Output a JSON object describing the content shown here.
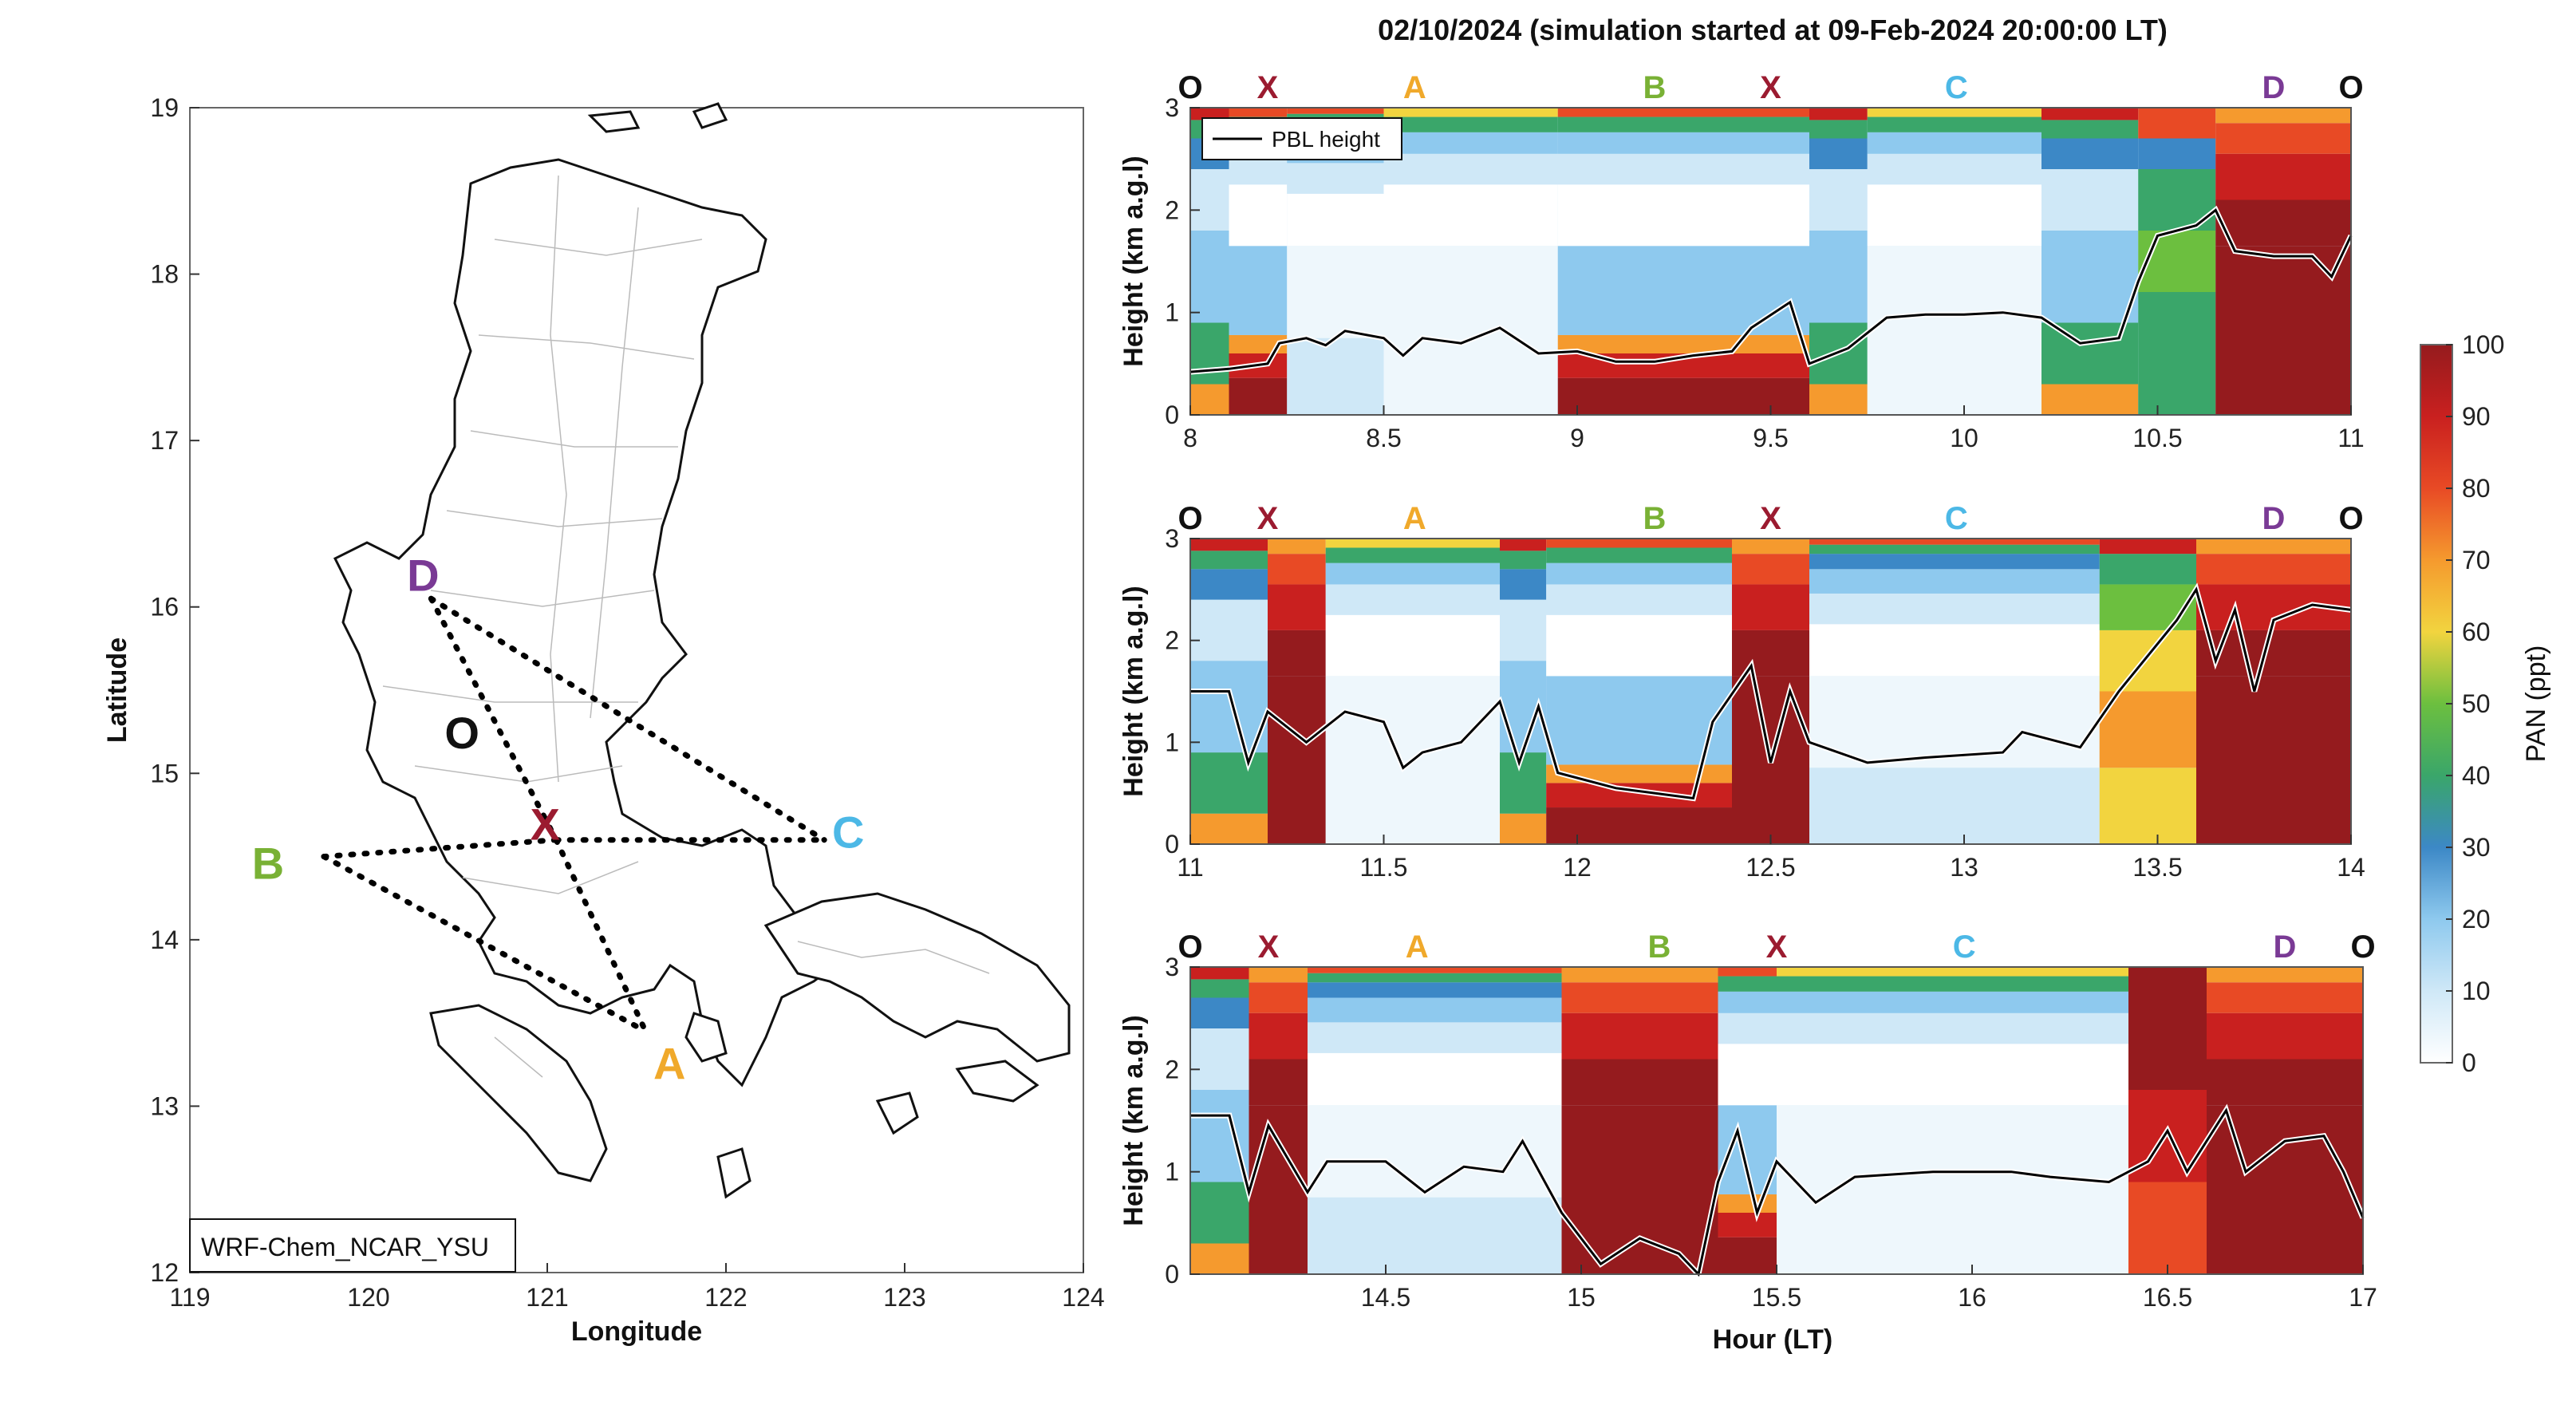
{
  "colors": {
    "O": "#111111",
    "X": "#9b1b30",
    "A": "#f0a92b",
    "B": "#79b135",
    "C": "#4cb8e6",
    "D": "#7a3a95"
  },
  "map": {
    "xlabel": "Longitude",
    "ylabel": "Latitude",
    "xticks": [
      "119",
      "120",
      "121",
      "122",
      "123",
      "124"
    ],
    "yticks": [
      "12",
      "13",
      "14",
      "15",
      "16",
      "17",
      "18",
      "19"
    ],
    "model_label": "WRF-Chem_NCAR_YSU",
    "points": [
      {
        "key": "D",
        "label": "D",
        "lon": 120.35,
        "lat": 16.05
      },
      {
        "key": "O",
        "label": "O",
        "lon": 120.55,
        "lat": 15.15
      },
      {
        "key": "X",
        "label": "X",
        "lon": 121.05,
        "lat": 14.6
      },
      {
        "key": "B",
        "label": "B",
        "lon": 119.75,
        "lat": 14.5
      },
      {
        "key": "C",
        "label": "C",
        "lon": 122.55,
        "lat": 14.6
      },
      {
        "key": "A",
        "label": "A",
        "lon": 121.55,
        "lat": 13.45
      }
    ]
  },
  "title": "02/10/2024 (simulation started at 09-Feb-2024 20:00:00 LT)",
  "legend_label": "PBL height",
  "xlabel": "Hour (LT)",
  "ylabel": "Height (km a.g.l)",
  "colorbar": {
    "label": "PAN (ppt)",
    "ticks": [
      "0",
      "10",
      "20",
      "30",
      "40",
      "50",
      "60",
      "70",
      "80",
      "90",
      "100"
    ]
  },
  "chart_data": [
    {
      "type": "heatmap",
      "xlim": [
        8,
        11
      ],
      "ylim": [
        0,
        3
      ],
      "xticks": [
        "8",
        "8.5",
        "9",
        "9.5",
        "10",
        "10.5",
        "11"
      ],
      "yticks": [
        "0",
        "1",
        "2",
        "3"
      ],
      "waypoints": [
        {
          "label": "O",
          "key": "O",
          "x": 8.0
        },
        {
          "label": "X",
          "key": "X",
          "x": 8.2
        },
        {
          "label": "A",
          "key": "A",
          "x": 8.58
        },
        {
          "label": "B",
          "key": "B",
          "x": 9.2
        },
        {
          "label": "X",
          "key": "X",
          "x": 9.5
        },
        {
          "label": "C",
          "key": "C",
          "x": 9.98
        },
        {
          "label": "D",
          "key": "D",
          "x": 10.8
        },
        {
          "label": "O",
          "key": "O",
          "x": 11.0
        }
      ],
      "pbl": [
        [
          8.0,
          0.42
        ],
        [
          8.1,
          0.45
        ],
        [
          8.2,
          0.5
        ],
        [
          8.23,
          0.7
        ],
        [
          8.3,
          0.75
        ],
        [
          8.35,
          0.68
        ],
        [
          8.4,
          0.82
        ],
        [
          8.5,
          0.75
        ],
        [
          8.55,
          0.58
        ],
        [
          8.6,
          0.75
        ],
        [
          8.7,
          0.7
        ],
        [
          8.8,
          0.85
        ],
        [
          8.9,
          0.6
        ],
        [
          9.0,
          0.62
        ],
        [
          9.1,
          0.52
        ],
        [
          9.2,
          0.52
        ],
        [
          9.3,
          0.58
        ],
        [
          9.4,
          0.62
        ],
        [
          9.45,
          0.85
        ],
        [
          9.55,
          1.1
        ],
        [
          9.6,
          0.5
        ],
        [
          9.7,
          0.65
        ],
        [
          9.8,
          0.95
        ],
        [
          9.9,
          0.98
        ],
        [
          10.0,
          0.98
        ],
        [
          10.1,
          1.0
        ],
        [
          10.2,
          0.95
        ],
        [
          10.3,
          0.7
        ],
        [
          10.4,
          0.75
        ],
        [
          10.45,
          1.3
        ],
        [
          10.5,
          1.75
        ],
        [
          10.6,
          1.85
        ],
        [
          10.65,
          2.0
        ],
        [
          10.7,
          1.6
        ],
        [
          10.8,
          1.55
        ],
        [
          10.9,
          1.55
        ],
        [
          10.95,
          1.35
        ],
        [
          11.0,
          1.75
        ]
      ],
      "columns": [
        [
          8.0,
          8.1,
          "mid"
        ],
        [
          8.1,
          8.25,
          "lowhi"
        ],
        [
          8.25,
          8.5,
          "clean"
        ],
        [
          8.5,
          8.95,
          "vclean"
        ],
        [
          8.95,
          9.3,
          "lowhi"
        ],
        [
          9.3,
          9.6,
          "lowhi"
        ],
        [
          9.6,
          9.75,
          "mid"
        ],
        [
          9.75,
          10.2,
          "vclean"
        ],
        [
          10.2,
          10.45,
          "mid"
        ],
        [
          10.45,
          10.65,
          "green"
        ],
        [
          10.65,
          11.0,
          "high"
        ]
      ]
    },
    {
      "type": "heatmap",
      "xlim": [
        11,
        14
      ],
      "ylim": [
        0,
        3
      ],
      "xticks": [
        "11",
        "11.5",
        "12",
        "12.5",
        "13",
        "13.5",
        "14"
      ],
      "yticks": [
        "0",
        "1",
        "2",
        "3"
      ],
      "waypoints": [
        {
          "label": "O",
          "key": "O",
          "x": 11.0
        },
        {
          "label": "X",
          "key": "X",
          "x": 11.2
        },
        {
          "label": "A",
          "key": "A",
          "x": 11.58
        },
        {
          "label": "B",
          "key": "B",
          "x": 12.2
        },
        {
          "label": "X",
          "key": "X",
          "x": 12.5
        },
        {
          "label": "C",
          "key": "C",
          "x": 12.98
        },
        {
          "label": "D",
          "key": "D",
          "x": 13.8
        },
        {
          "label": "O",
          "key": "O",
          "x": 14.0
        }
      ],
      "pbl": [
        [
          11.0,
          1.5
        ],
        [
          11.1,
          1.5
        ],
        [
          11.15,
          0.8
        ],
        [
          11.2,
          1.3
        ],
        [
          11.3,
          1.0
        ],
        [
          11.4,
          1.3
        ],
        [
          11.5,
          1.2
        ],
        [
          11.55,
          0.75
        ],
        [
          11.6,
          0.9
        ],
        [
          11.7,
          1.0
        ],
        [
          11.8,
          1.4
        ],
        [
          11.85,
          0.8
        ],
        [
          11.9,
          1.35
        ],
        [
          11.95,
          0.7
        ],
        [
          12.1,
          0.55
        ],
        [
          12.3,
          0.45
        ],
        [
          12.35,
          1.2
        ],
        [
          12.45,
          1.75
        ],
        [
          12.5,
          0.8
        ],
        [
          12.55,
          1.5
        ],
        [
          12.6,
          1.0
        ],
        [
          12.75,
          0.8
        ],
        [
          12.9,
          0.85
        ],
        [
          13.1,
          0.9
        ],
        [
          13.15,
          1.1
        ],
        [
          13.3,
          0.95
        ],
        [
          13.4,
          1.5
        ],
        [
          13.55,
          2.2
        ],
        [
          13.6,
          2.5
        ],
        [
          13.65,
          1.8
        ],
        [
          13.7,
          2.3
        ],
        [
          13.75,
          1.5
        ],
        [
          13.8,
          2.2
        ],
        [
          13.9,
          2.35
        ],
        [
          14.0,
          2.3
        ]
      ],
      "columns": [
        [
          11.0,
          11.2,
          "mid"
        ],
        [
          11.2,
          11.35,
          "high"
        ],
        [
          11.35,
          11.8,
          "vclean"
        ],
        [
          11.8,
          11.92,
          "mid"
        ],
        [
          11.92,
          12.4,
          "lowhi"
        ],
        [
          12.4,
          12.6,
          "high"
        ],
        [
          12.6,
          13.35,
          "clean"
        ],
        [
          13.35,
          13.6,
          "yellow"
        ],
        [
          13.6,
          14.0,
          "high"
        ]
      ]
    },
    {
      "type": "heatmap",
      "xlim": [
        14,
        17
      ],
      "ylim": [
        0,
        3
      ],
      "xticks": [
        "14.5",
        "15",
        "15.5",
        "16",
        "16.5",
        "17"
      ],
      "yticks": [
        "0",
        "1",
        "2",
        "3"
      ],
      "waypoints": [
        {
          "label": "O",
          "key": "O",
          "x": 14.0
        },
        {
          "label": "X",
          "key": "X",
          "x": 14.2
        },
        {
          "label": "A",
          "key": "A",
          "x": 14.58
        },
        {
          "label": "B",
          "key": "B",
          "x": 15.2
        },
        {
          "label": "X",
          "key": "X",
          "x": 15.5
        },
        {
          "label": "C",
          "key": "C",
          "x": 15.98
        },
        {
          "label": "D",
          "key": "D",
          "x": 16.8
        },
        {
          "label": "O",
          "key": "O",
          "x": 17.0
        }
      ],
      "pbl": [
        [
          14.0,
          1.55
        ],
        [
          14.1,
          1.55
        ],
        [
          14.15,
          0.8
        ],
        [
          14.2,
          1.45
        ],
        [
          14.3,
          0.8
        ],
        [
          14.35,
          1.1
        ],
        [
          14.5,
          1.1
        ],
        [
          14.6,
          0.8
        ],
        [
          14.7,
          1.05
        ],
        [
          14.8,
          1.0
        ],
        [
          14.85,
          1.3
        ],
        [
          14.95,
          0.6
        ],
        [
          15.05,
          0.1
        ],
        [
          15.15,
          0.35
        ],
        [
          15.25,
          0.2
        ],
        [
          15.3,
          0.0
        ],
        [
          15.35,
          0.9
        ],
        [
          15.4,
          1.4
        ],
        [
          15.45,
          0.6
        ],
        [
          15.5,
          1.1
        ],
        [
          15.6,
          0.7
        ],
        [
          15.7,
          0.95
        ],
        [
          15.9,
          1.0
        ],
        [
          16.1,
          1.0
        ],
        [
          16.2,
          0.95
        ],
        [
          16.35,
          0.9
        ],
        [
          16.45,
          1.1
        ],
        [
          16.5,
          1.4
        ],
        [
          16.55,
          1.0
        ],
        [
          16.65,
          1.6
        ],
        [
          16.7,
          1.0
        ],
        [
          16.8,
          1.3
        ],
        [
          16.9,
          1.35
        ],
        [
          16.95,
          1.0
        ],
        [
          17.0,
          0.55
        ]
      ],
      "columns": [
        [
          14.0,
          14.15,
          "mid"
        ],
        [
          14.15,
          14.3,
          "high"
        ],
        [
          14.3,
          14.95,
          "clean"
        ],
        [
          14.95,
          15.35,
          "high"
        ],
        [
          15.35,
          15.5,
          "lowhi"
        ],
        [
          15.5,
          16.4,
          "vclean"
        ],
        [
          16.4,
          16.6,
          "highmix"
        ],
        [
          16.6,
          17.0,
          "high"
        ]
      ]
    }
  ]
}
